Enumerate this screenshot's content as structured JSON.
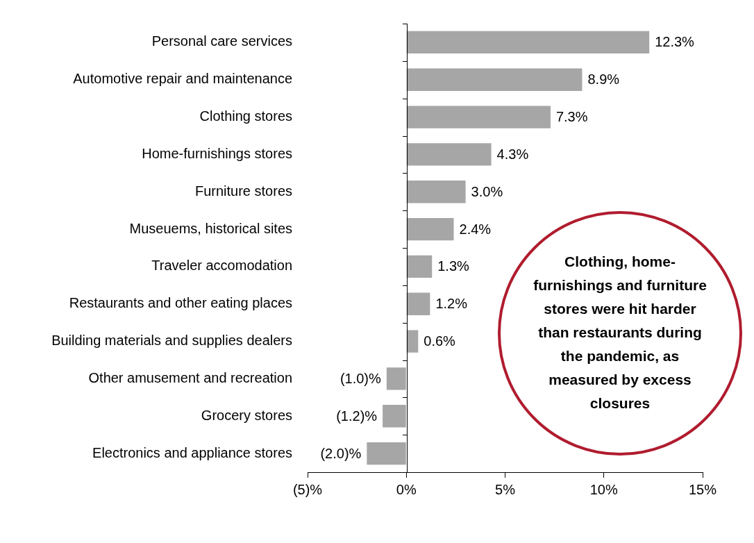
{
  "chart_data": {
    "type": "bar",
    "orientation": "horizontal",
    "categories": [
      "Personal care services",
      "Automotive repair and maintenance",
      "Clothing stores",
      "Home-furnishings stores",
      "Furniture stores",
      "Museuems, historical sites",
      "Traveler accomodation",
      "Restaurants and other eating places",
      "Building materials and supplies dealers",
      "Other amusement and recreation",
      "Grocery stores",
      "Electronics and appliance stores"
    ],
    "values": [
      12.3,
      8.9,
      7.3,
      4.3,
      3.0,
      2.4,
      1.3,
      1.2,
      0.6,
      -1.0,
      -1.2,
      -2.0
    ],
    "value_labels": [
      "12.3%",
      "8.9%",
      "7.3%",
      "4.3%",
      "3.0%",
      "2.4%",
      "1.3%",
      "1.2%",
      "0.6%",
      "(1.0)%",
      "(1.2)%",
      "(2.0)%"
    ],
    "data_labels": true,
    "color": "#a6a6a6",
    "xlim": [
      -5,
      15
    ],
    "xticks": [
      {
        "value": -5,
        "label": "(5)%"
      },
      {
        "value": 0,
        "label": "0%"
      },
      {
        "value": 5,
        "label": "5%"
      },
      {
        "value": 10,
        "label": "10%"
      },
      {
        "value": 15,
        "label": "15%"
      }
    ],
    "grid": false,
    "legend": null,
    "annotation": "Clothing, home-furnishings and furniture stores were hit harder than restaurants during the pandemic, as measured by excess closures"
  }
}
